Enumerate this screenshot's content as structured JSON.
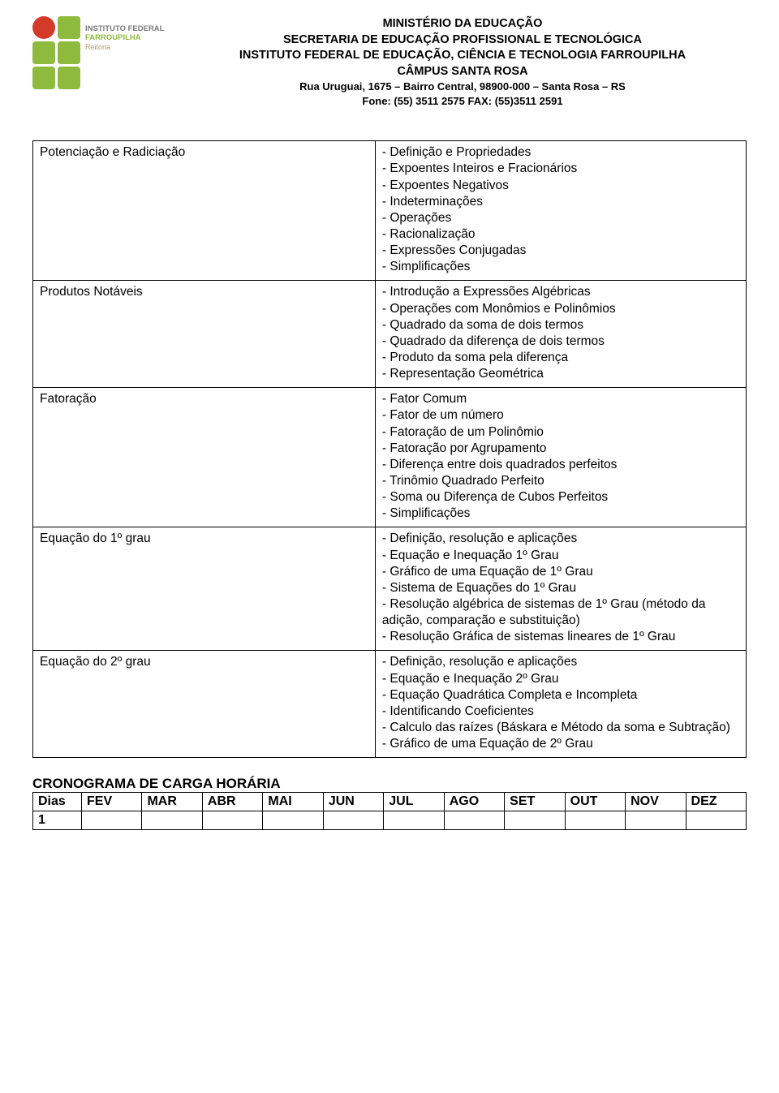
{
  "header": {
    "line1": "MINISTÉRIO DA EDUCAÇÃO",
    "line2": "SECRETARIA DE EDUCAÇÃO PROFISSIONAL E TECNOLÓGICA",
    "line3": "INSTITUTO FEDERAL DE EDUCAÇÃO, CIÊNCIA E TECNOLOGIA FARROUPILHA",
    "line4": "CÂMPUS SANTA ROSA",
    "line5": "Rua Uruguai, 1675 – Bairro Central, 98900-000 – Santa Rosa – RS",
    "line6": "Fone: (55) 3511 2575      FAX: (55)3511 2591"
  },
  "logo": {
    "text1": "INSTITUTO FEDERAL",
    "text2": "FARROUPILHA",
    "text3": "Reitoria",
    "colors": {
      "red": "#d43a2a",
      "green": "#8ebb3e"
    }
  },
  "topics": [
    {
      "name": "Potenciação e Radiciação",
      "details": [
        "- Definição e Propriedades",
        "- Expoentes Inteiros e Fracionários",
        "- Expoentes Negativos",
        "- Indeterminações",
        "- Operações",
        "- Racionalização",
        "- Expressões Conjugadas",
        "- Simplificações"
      ]
    },
    {
      "name": "Produtos Notáveis",
      "details": [
        "- Introdução a Expressões Algébricas",
        "- Operações com Monômios e Polinômios",
        "- Quadrado da soma de dois termos",
        "- Quadrado da diferença de dois termos",
        "- Produto da soma pela diferença",
        "- Representação Geométrica"
      ]
    },
    {
      "name": "Fatoração",
      "details": [
        "- Fator Comum",
        "- Fator de um número",
        "- Fatoração de um Polinômio",
        "- Fatoração por Agrupamento",
        "- Diferença entre dois quadrados perfeitos",
        "- Trinômio Quadrado Perfeito",
        "- Soma ou Diferença de Cubos Perfeitos",
        "- Simplificações"
      ]
    },
    {
      "name": "Equação do 1º grau",
      "details": [
        "- Definição, resolução e aplicações",
        "- Equação e Inequação 1º Grau",
        "- Gráfico de uma Equação de 1º Grau",
        "- Sistema de Equações do 1º Grau",
        "- Resolução algébrica de sistemas de 1º Grau (método da adição, comparação e substituição)",
        "- Resolução Gráfica de sistemas lineares de 1º Grau"
      ]
    },
    {
      "name": "Equação do 2º grau",
      "details": [
        "- Definição, resolução e aplicações",
        "- Equação e Inequação 2º Grau",
        "- Equação Quadrática Completa e Incompleta",
        "- Identificando Coeficientes",
        "- Calculo das raízes (Báskara e Método da soma e Subtração)",
        "- Gráfico de uma Equação de 2º Grau"
      ]
    }
  ],
  "crono": {
    "title": "CRONOGRAMA DE CARGA HORÁRIA",
    "headers": [
      "Dias",
      "FEV",
      "MAR",
      "ABR",
      "MAI",
      "JUN",
      "JUL",
      "AGO",
      "SET",
      "OUT",
      "NOV",
      "DEZ"
    ],
    "row1": "1"
  }
}
